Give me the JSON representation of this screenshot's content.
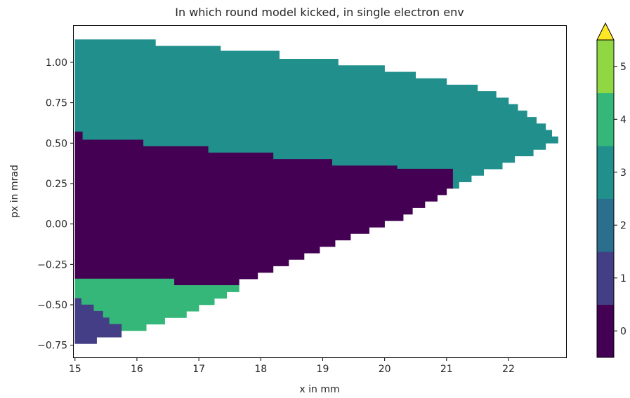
{
  "chart_data": {
    "type": "heatmap",
    "title": "In which round model kicked, in single electron env",
    "xlabel": "x in mm",
    "ylabel": "px in mrad",
    "xlim": [
      14.98,
      22.93
    ],
    "ylim": [
      -0.825,
      1.225
    ],
    "xticks": [
      15,
      16,
      17,
      18,
      19,
      20,
      21,
      22
    ],
    "yticks": [
      -0.75,
      -0.5,
      -0.25,
      0.0,
      0.25,
      0.5,
      0.75,
      1.0
    ],
    "ytick_labels": [
      "−0.75",
      "−0.50",
      "−0.25",
      "0.00",
      "0.25",
      "0.50",
      "0.75",
      "1.00"
    ],
    "grid": false,
    "colorbar": {
      "levels": [
        0,
        1,
        2,
        3,
        4,
        5
      ],
      "ticks": [
        "0",
        "1",
        "2",
        "3",
        "4",
        "5"
      ],
      "colors": [
        "#440154",
        "#433e85",
        "#2c6e8e",
        "#21908d",
        "#35b779",
        "#90d743",
        "#fde725"
      ],
      "extend": "max"
    },
    "regions": [
      {
        "value": 3,
        "color": "#21908d",
        "outline": [
          [
            15.0,
            1.14
          ],
          [
            16.3,
            1.14
          ],
          [
            16.3,
            1.1
          ],
          [
            17.35,
            1.1
          ],
          [
            17.35,
            1.07
          ],
          [
            18.3,
            1.07
          ],
          [
            18.3,
            1.02
          ],
          [
            19.25,
            1.02
          ],
          [
            19.25,
            0.98
          ],
          [
            20.0,
            0.98
          ],
          [
            20.0,
            0.94
          ],
          [
            20.5,
            0.94
          ],
          [
            20.5,
            0.9
          ],
          [
            21.0,
            0.9
          ],
          [
            21.0,
            0.86
          ],
          [
            21.5,
            0.86
          ],
          [
            21.5,
            0.82
          ],
          [
            21.8,
            0.82
          ],
          [
            21.8,
            0.78
          ],
          [
            22.0,
            0.78
          ],
          [
            22.0,
            0.74
          ],
          [
            22.15,
            0.74
          ],
          [
            22.15,
            0.7
          ],
          [
            22.3,
            0.7
          ],
          [
            22.3,
            0.66
          ],
          [
            22.45,
            0.66
          ],
          [
            22.45,
            0.62
          ],
          [
            22.6,
            0.62
          ],
          [
            22.6,
            0.58
          ],
          [
            22.7,
            0.58
          ],
          [
            22.7,
            0.54
          ],
          [
            22.8,
            0.54
          ],
          [
            22.8,
            0.5
          ],
          [
            22.6,
            0.5
          ],
          [
            22.6,
            0.46
          ],
          [
            22.4,
            0.46
          ],
          [
            22.4,
            0.42
          ],
          [
            22.1,
            0.42
          ],
          [
            22.1,
            0.38
          ],
          [
            21.9,
            0.38
          ],
          [
            21.9,
            0.34
          ],
          [
            21.6,
            0.34
          ],
          [
            21.6,
            0.3
          ],
          [
            21.4,
            0.3
          ],
          [
            21.4,
            0.26
          ],
          [
            21.2,
            0.26
          ],
          [
            21.2,
            0.22
          ],
          [
            21.1,
            0.22
          ],
          [
            21.1,
            0.34
          ],
          [
            20.2,
            0.34
          ],
          [
            20.2,
            0.36
          ],
          [
            19.15,
            0.36
          ],
          [
            19.15,
            0.4
          ],
          [
            18.2,
            0.4
          ],
          [
            18.2,
            0.44
          ],
          [
            17.15,
            0.44
          ],
          [
            17.15,
            0.48
          ],
          [
            16.1,
            0.48
          ],
          [
            16.1,
            0.52
          ],
          [
            15.12,
            0.52
          ],
          [
            15.12,
            0.57
          ],
          [
            15.0,
            0.57
          ]
        ]
      },
      {
        "value": 0,
        "color": "#440154",
        "outline": [
          [
            15.0,
            0.57
          ],
          [
            15.12,
            0.57
          ],
          [
            15.12,
            0.52
          ],
          [
            16.1,
            0.52
          ],
          [
            16.1,
            0.48
          ],
          [
            17.15,
            0.48
          ],
          [
            17.15,
            0.44
          ],
          [
            18.2,
            0.44
          ],
          [
            18.2,
            0.4
          ],
          [
            19.15,
            0.4
          ],
          [
            19.15,
            0.36
          ],
          [
            20.2,
            0.36
          ],
          [
            20.2,
            0.34
          ],
          [
            21.1,
            0.34
          ],
          [
            21.1,
            0.22
          ],
          [
            21.0,
            0.22
          ],
          [
            21.0,
            0.18
          ],
          [
            20.85,
            0.18
          ],
          [
            20.85,
            0.14
          ],
          [
            20.65,
            0.14
          ],
          [
            20.65,
            0.1
          ],
          [
            20.45,
            0.1
          ],
          [
            20.45,
            0.06
          ],
          [
            20.3,
            0.06
          ],
          [
            20.3,
            0.02
          ],
          [
            20.0,
            0.02
          ],
          [
            20.0,
            -0.02
          ],
          [
            19.75,
            -0.02
          ],
          [
            19.75,
            -0.06
          ],
          [
            19.45,
            -0.06
          ],
          [
            19.45,
            -0.1
          ],
          [
            19.2,
            -0.1
          ],
          [
            19.2,
            -0.14
          ],
          [
            18.95,
            -0.14
          ],
          [
            18.95,
            -0.18
          ],
          [
            18.7,
            -0.18
          ],
          [
            18.7,
            -0.22
          ],
          [
            18.45,
            -0.22
          ],
          [
            18.45,
            -0.26
          ],
          [
            18.2,
            -0.26
          ],
          [
            18.2,
            -0.3
          ],
          [
            17.95,
            -0.3
          ],
          [
            17.95,
            -0.34
          ],
          [
            17.65,
            -0.34
          ],
          [
            17.65,
            -0.38
          ],
          [
            16.6,
            -0.38
          ],
          [
            16.6,
            -0.34
          ],
          [
            15.0,
            -0.34
          ]
        ]
      },
      {
        "value": 4,
        "color": "#35b779",
        "outline": [
          [
            15.0,
            -0.34
          ],
          [
            16.6,
            -0.34
          ],
          [
            16.6,
            -0.38
          ],
          [
            17.65,
            -0.38
          ],
          [
            17.65,
            -0.42
          ],
          [
            17.45,
            -0.42
          ],
          [
            17.45,
            -0.46
          ],
          [
            17.25,
            -0.46
          ],
          [
            17.25,
            -0.5
          ],
          [
            17.0,
            -0.5
          ],
          [
            17.0,
            -0.54
          ],
          [
            16.8,
            -0.54
          ],
          [
            16.8,
            -0.58
          ],
          [
            16.45,
            -0.58
          ],
          [
            16.45,
            -0.62
          ],
          [
            16.15,
            -0.62
          ],
          [
            16.15,
            -0.66
          ],
          [
            15.75,
            -0.66
          ],
          [
            15.75,
            -0.62
          ],
          [
            15.55,
            -0.62
          ],
          [
            15.55,
            -0.58
          ],
          [
            15.45,
            -0.58
          ],
          [
            15.45,
            -0.54
          ],
          [
            15.3,
            -0.54
          ],
          [
            15.3,
            -0.5
          ],
          [
            15.1,
            -0.5
          ],
          [
            15.1,
            -0.46
          ],
          [
            15.0,
            -0.46
          ]
        ]
      },
      {
        "value": 1,
        "color": "#433e85",
        "outline": [
          [
            15.0,
            -0.46
          ],
          [
            15.1,
            -0.46
          ],
          [
            15.1,
            -0.5
          ],
          [
            15.3,
            -0.5
          ],
          [
            15.3,
            -0.54
          ],
          [
            15.45,
            -0.54
          ],
          [
            15.45,
            -0.58
          ],
          [
            15.55,
            -0.58
          ],
          [
            15.55,
            -0.62
          ],
          [
            15.75,
            -0.62
          ],
          [
            15.75,
            -0.7
          ],
          [
            15.35,
            -0.7
          ],
          [
            15.35,
            -0.74
          ],
          [
            15.0,
            -0.74
          ]
        ]
      }
    ]
  }
}
